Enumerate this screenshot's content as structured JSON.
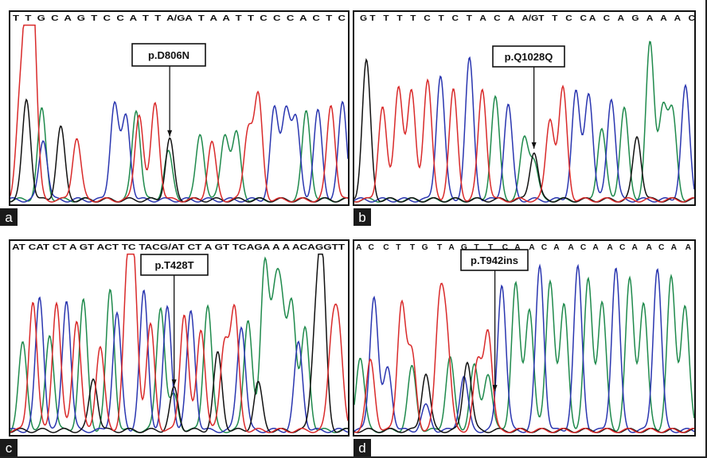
{
  "figure": {
    "base_colors": {
      "A": "#1f8a4c",
      "C": "#2a36b0",
      "G": "#111111",
      "T": "#d92a2a"
    },
    "panels": [
      {
        "letter": "a",
        "sequence": "T  T  G  C  A  G  T  C  C  A  T  T  A/GA  T  A  A  T  T  C  C  C  A  C  T  C",
        "mutation_label": "p.D806N",
        "peaks": [
          [
            "T",
            0.1,
            0.92
          ],
          [
            "T",
            0.05,
            0.5
          ],
          [
            "T",
            0.14,
            0.95
          ],
          [
            "G",
            0.095,
            0.58
          ],
          [
            "C",
            0.21,
            0.35
          ],
          [
            "A",
            0.2,
            0.52
          ],
          [
            "G",
            0.33,
            0.42
          ],
          [
            "T",
            0.44,
            0.36
          ],
          [
            "C",
            0.7,
            0.56
          ],
          [
            "C",
            0.78,
            0.48
          ],
          [
            "A",
            0.85,
            0.52
          ],
          [
            "T",
            0.87,
            0.5
          ],
          [
            "T",
            0.98,
            0.56
          ],
          [
            "G",
            1.08,
            0.35
          ],
          [
            "A",
            1.07,
            0.28
          ],
          [
            "A",
            1.29,
            0.38
          ],
          [
            "T",
            1.37,
            0.33
          ],
          [
            "A",
            1.46,
            0.38
          ],
          [
            "A",
            1.54,
            0.38
          ],
          [
            "T",
            1.62,
            0.41
          ],
          [
            "T",
            1.69,
            0.59
          ],
          [
            "C",
            1.8,
            0.52
          ],
          [
            "C",
            1.88,
            0.52
          ],
          [
            "C",
            1.95,
            0.45
          ],
          [
            "A",
            2.02,
            0.51
          ],
          [
            "C",
            2.1,
            0.51
          ],
          [
            "T",
            2.19,
            0.55
          ],
          [
            "C",
            2.27,
            0.56
          ]
        ],
        "arrow_at": 1.08
      },
      {
        "letter": "b",
        "sequence": "G T   T   T   T   C   T   C   T   A   C   A   A/GT   T   C   C A   C   A   G   A   A   A   C",
        "mutation_label": "p.Q1028Q",
        "peaks": [
          [
            "G",
            0.03,
            0.8
          ],
          [
            "T",
            0.08,
            0.54
          ],
          [
            "T",
            0.13,
            0.66
          ],
          [
            "T",
            0.17,
            0.62
          ],
          [
            "T",
            0.22,
            0.69
          ],
          [
            "C",
            0.26,
            0.72
          ],
          [
            "T",
            0.3,
            0.63
          ],
          [
            "C",
            0.35,
            0.81
          ],
          [
            "T",
            0.39,
            0.64
          ],
          [
            "A",
            0.43,
            0.59
          ],
          [
            "C",
            0.47,
            0.55
          ],
          [
            "A",
            0.52,
            0.35
          ],
          [
            "G",
            0.55,
            0.28
          ],
          [
            "A",
            0.55,
            0.22
          ],
          [
            "T",
            0.6,
            0.47
          ],
          [
            "T",
            0.64,
            0.64
          ],
          [
            "C",
            0.68,
            0.62
          ],
          [
            "C",
            0.72,
            0.62
          ],
          [
            "A",
            0.76,
            0.41
          ],
          [
            "C",
            0.79,
            0.59
          ],
          [
            "A",
            0.83,
            0.53
          ],
          [
            "G",
            0.87,
            0.37
          ],
          [
            "A",
            0.91,
            0.9
          ],
          [
            "A",
            0.95,
            0.53
          ],
          [
            "A",
            0.98,
            0.49
          ],
          [
            "C",
            1.02,
            0.65
          ]
        ],
        "arrow_at": 0.55
      },
      {
        "letter": "c",
        "sequence": "AT CAT CT A GT ACT TC TACG/AT CT A GT TCAGA A A ACAGGTT",
        "mutation_label": "p.T428T",
        "peaks": [
          [
            "A",
            0.03,
            0.5
          ],
          [
            "T",
            0.06,
            0.74
          ],
          [
            "C",
            0.08,
            0.76
          ],
          [
            "A",
            0.11,
            0.55
          ],
          [
            "T",
            0.13,
            0.73
          ],
          [
            "C",
            0.16,
            0.75
          ],
          [
            "T",
            0.19,
            0.63
          ],
          [
            "A",
            0.21,
            0.74
          ],
          [
            "G",
            0.24,
            0.3
          ],
          [
            "T",
            0.26,
            0.48
          ],
          [
            "A",
            0.29,
            0.8
          ],
          [
            "C",
            0.31,
            0.67
          ],
          [
            "T",
            0.34,
            0.77
          ],
          [
            "T",
            0.36,
            0.86
          ],
          [
            "C",
            0.39,
            0.79
          ],
          [
            "T",
            0.41,
            0.6
          ],
          [
            "A",
            0.44,
            0.71
          ],
          [
            "C",
            0.46,
            0.7
          ],
          [
            "G",
            0.48,
            0.24
          ],
          [
            "A",
            0.48,
            0.2
          ],
          [
            "T",
            0.51,
            0.67
          ],
          [
            "C",
            0.53,
            0.68
          ],
          [
            "T",
            0.56,
            0.58
          ],
          [
            "A",
            0.58,
            0.72
          ],
          [
            "G",
            0.61,
            0.44
          ],
          [
            "T",
            0.63,
            0.5
          ],
          [
            "C",
            0.68,
            0.6
          ],
          [
            "T",
            0.66,
            0.68
          ],
          [
            "A",
            0.7,
            0.64
          ],
          [
            "G",
            0.73,
            0.27
          ],
          [
            "A",
            0.75,
            0.95
          ],
          [
            "A",
            0.78,
            0.66
          ],
          [
            "A",
            0.8,
            0.6
          ],
          [
            "A",
            0.83,
            0.73
          ],
          [
            "C",
            0.85,
            0.5
          ],
          [
            "A",
            0.87,
            0.58
          ],
          [
            "G",
            0.9,
            0.49
          ],
          [
            "G",
            0.92,
            0.94
          ],
          [
            "T",
            0.95,
            0.5
          ],
          [
            "T",
            0.97,
            0.52
          ]
        ],
        "arrow_at": 0.48
      },
      {
        "letter": "d",
        "sequence": "A   C    C   T    T   G    T   A   G   T    T    C   A    A   C   A    A   C   A    A   C   A    A   C   A    A",
        "mutation_label": "p.T942ins",
        "peaks": [
          [
            "A",
            0.01,
            0.42
          ],
          [
            "C",
            0.05,
            0.77
          ],
          [
            "T",
            0.04,
            0.4
          ],
          [
            "C",
            0.09,
            0.36
          ],
          [
            "T",
            0.13,
            0.73
          ],
          [
            "T",
            0.16,
            0.43
          ],
          [
            "A",
            0.16,
            0.36
          ],
          [
            "G",
            0.2,
            0.33
          ],
          [
            "C",
            0.2,
            0.14
          ],
          [
            "T",
            0.24,
            0.68
          ],
          [
            "T",
            0.26,
            0.5
          ],
          [
            "A",
            0.27,
            0.42
          ],
          [
            "C",
            0.31,
            0.31
          ],
          [
            "G",
            0.32,
            0.4
          ],
          [
            "A",
            0.34,
            0.37
          ],
          [
            "T",
            0.35,
            0.38
          ],
          [
            "A",
            0.38,
            0.33
          ],
          [
            "T",
            0.38,
            0.57
          ],
          [
            "C",
            0.42,
            0.84
          ],
          [
            "A",
            0.46,
            0.84
          ],
          [
            "A",
            0.5,
            0.7
          ],
          [
            "C",
            0.53,
            0.94
          ],
          [
            "A",
            0.56,
            0.86
          ],
          [
            "A",
            0.6,
            0.71
          ],
          [
            "C",
            0.64,
            0.93
          ],
          [
            "A",
            0.67,
            0.86
          ],
          [
            "A",
            0.71,
            0.73
          ],
          [
            "C",
            0.75,
            0.93
          ],
          [
            "A",
            0.79,
            0.86
          ],
          [
            "A",
            0.83,
            0.73
          ],
          [
            "C",
            0.87,
            0.93
          ],
          [
            "A",
            0.91,
            0.87
          ],
          [
            "A",
            0.95,
            0.72
          ]
        ],
        "arrow_at": 0.4
      }
    ]
  }
}
